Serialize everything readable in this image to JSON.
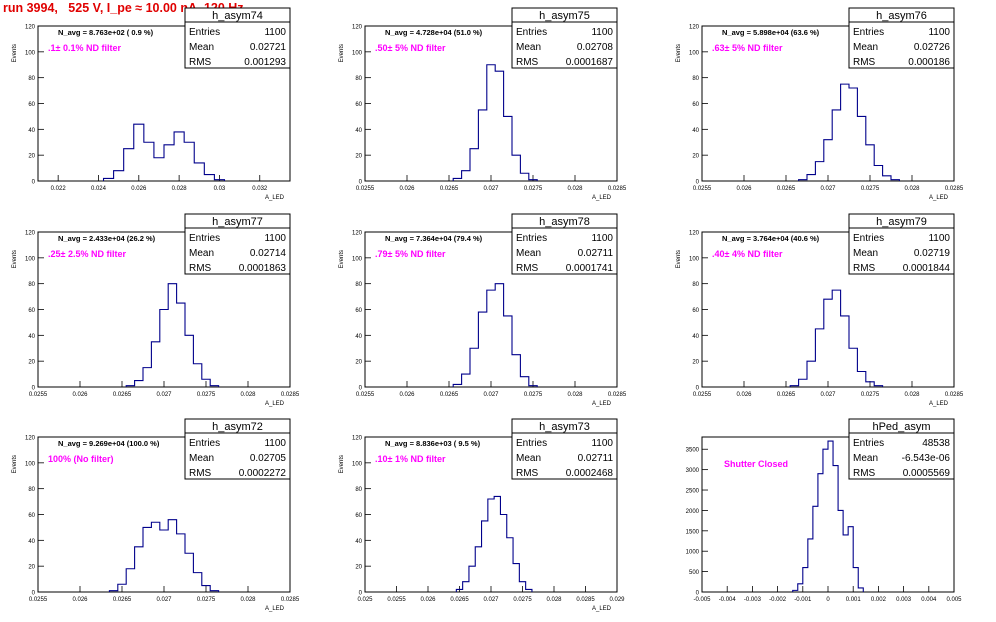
{
  "run_title": "run 3994,   525 V, I_pe ≈ 10.00 nA, 120 Hz",
  "colors": {
    "title": "#e00000",
    "histogram": "#00008b",
    "annotation": "#ff00ff",
    "axes": "#000000"
  },
  "chart_data": [
    {
      "type": "histogram",
      "name": "h_asym74",
      "stats": {
        "entries_label": "Entries",
        "entries": "1100",
        "mean_label": "Mean",
        "mean": "0.02721",
        "rms_label": "RMS",
        "rms": "0.001293"
      },
      "navg": "N_avg = 8.763e+02 ( 0.9 %)",
      "filter": ".1± 0.1% ND filter",
      "ylabel": "Events",
      "xlabel": "A_LED",
      "xlim": [
        0.021,
        0.0335
      ],
      "ylim": [
        0,
        120
      ],
      "xticks": [
        "0.022",
        "0.024",
        "0.026",
        "0.028",
        "0.03",
        "0.032"
      ],
      "yticks": [
        "0",
        "20",
        "40",
        "60",
        "80",
        "100",
        "120"
      ],
      "x": [
        0.0245,
        0.025,
        0.0255,
        0.026,
        0.0265,
        0.027,
        0.0275,
        0.028,
        0.0285,
        0.029,
        0.0295,
        0.03
      ],
      "values": [
        2,
        8,
        25,
        44,
        30,
        18,
        28,
        38,
        30,
        14,
        5,
        1
      ]
    },
    {
      "type": "histogram",
      "name": "h_asym75",
      "stats": {
        "entries_label": "Entries",
        "entries": "1100",
        "mean_label": "Mean",
        "mean": "0.02708",
        "rms_label": "RMS",
        "rms": "0.0001687"
      },
      "navg": "N_avg = 4.728e+04 (51.0 %)",
      "filter": ".50± 5% ND filter",
      "ylabel": "Events",
      "xlabel": "A_LED",
      "xlim": [
        0.0255,
        0.0285
      ],
      "ylim": [
        0,
        120
      ],
      "xticks": [
        "0.0255",
        "0.026",
        "0.0265",
        "0.027",
        "0.0275",
        "0.028",
        "0.0285"
      ],
      "yticks": [
        "0",
        "20",
        "40",
        "60",
        "80",
        "100",
        "120"
      ],
      "x": [
        0.0266,
        0.0267,
        0.0268,
        0.0269,
        0.027,
        0.0271,
        0.0272,
        0.0273,
        0.0274,
        0.0275
      ],
      "values": [
        2,
        8,
        25,
        55,
        90,
        85,
        50,
        20,
        6,
        1
      ]
    },
    {
      "type": "histogram",
      "name": "h_asym76",
      "stats": {
        "entries_label": "Entries",
        "entries": "1100",
        "mean_label": "Mean",
        "mean": "0.02726",
        "rms_label": "RMS",
        "rms": "0.000186"
      },
      "navg": "N_avg = 5.898e+04 (63.6 %)",
      "filter": ".63± 5% ND filter",
      "ylabel": "Events",
      "xlabel": "A_LED",
      "xlim": [
        0.0255,
        0.0285
      ],
      "ylim": [
        0,
        120
      ],
      "xticks": [
        "0.0255",
        "0.026",
        "0.0265",
        "0.027",
        "0.0275",
        "0.028",
        "0.0285"
      ],
      "yticks": [
        "0",
        "20",
        "40",
        "60",
        "80",
        "100",
        "120"
      ],
      "x": [
        0.0267,
        0.0268,
        0.0269,
        0.027,
        0.0271,
        0.0272,
        0.0273,
        0.0274,
        0.0275,
        0.0276,
        0.0277,
        0.0278
      ],
      "values": [
        1,
        5,
        15,
        32,
        55,
        75,
        72,
        50,
        28,
        12,
        4,
        1
      ]
    },
    {
      "type": "histogram",
      "name": "h_asym77",
      "stats": {
        "entries_label": "Entries",
        "entries": "1100",
        "mean_label": "Mean",
        "mean": "0.02714",
        "rms_label": "RMS",
        "rms": "0.0001863"
      },
      "navg": "N_avg = 2.433e+04 (26.2 %)",
      "filter": ".25± 2.5% ND filter",
      "ylabel": "Events",
      "xlabel": "A_LED",
      "xlim": [
        0.0255,
        0.0285
      ],
      "ylim": [
        0,
        120
      ],
      "xticks": [
        "0.0255",
        "0.026",
        "0.0265",
        "0.027",
        "0.0275",
        "0.028",
        "0.0285"
      ],
      "yticks": [
        "0",
        "20",
        "40",
        "60",
        "80",
        "100",
        "120"
      ],
      "x": [
        0.0266,
        0.0267,
        0.0268,
        0.0269,
        0.027,
        0.0271,
        0.0272,
        0.0273,
        0.0274,
        0.0275,
        0.0276
      ],
      "values": [
        1,
        5,
        15,
        35,
        60,
        80,
        65,
        40,
        18,
        6,
        1
      ]
    },
    {
      "type": "histogram",
      "name": "h_asym78",
      "stats": {
        "entries_label": "Entries",
        "entries": "1100",
        "mean_label": "Mean",
        "mean": "0.02711",
        "rms_label": "RMS",
        "rms": "0.0001741"
      },
      "navg": "N_avg = 7.364e+04 (79.4 %)",
      "filter": ".79± 5% ND filter",
      "ylabel": "Events",
      "xlabel": "A_LED",
      "xlim": [
        0.0255,
        0.0285
      ],
      "ylim": [
        0,
        120
      ],
      "xticks": [
        "0.0255",
        "0.026",
        "0.0265",
        "0.027",
        "0.0275",
        "0.028",
        "0.0285"
      ],
      "yticks": [
        "0",
        "20",
        "40",
        "60",
        "80",
        "100",
        "120"
      ],
      "x": [
        0.0266,
        0.0267,
        0.0268,
        0.0269,
        0.027,
        0.0271,
        0.0272,
        0.0273,
        0.0274,
        0.0275
      ],
      "values": [
        2,
        10,
        30,
        58,
        75,
        80,
        55,
        25,
        8,
        1
      ]
    },
    {
      "type": "histogram",
      "name": "h_asym79",
      "stats": {
        "entries_label": "Entries",
        "entries": "1100",
        "mean_label": "Mean",
        "mean": "0.02719",
        "rms_label": "RMS",
        "rms": "0.0001844"
      },
      "navg": "N_avg = 3.764e+04 (40.6 %)",
      "filter": ".40± 4% ND filter",
      "ylabel": "Events",
      "xlabel": "A_LED",
      "xlim": [
        0.0255,
        0.0285
      ],
      "ylim": [
        0,
        120
      ],
      "xticks": [
        "0.0255",
        "0.026",
        "0.0265",
        "0.027",
        "0.0275",
        "0.028",
        "0.0285"
      ],
      "yticks": [
        "0",
        "20",
        "40",
        "60",
        "80",
        "100",
        "120"
      ],
      "x": [
        0.0266,
        0.0267,
        0.0268,
        0.0269,
        0.027,
        0.0271,
        0.0272,
        0.0273,
        0.0274,
        0.0275,
        0.0276
      ],
      "values": [
        1,
        6,
        20,
        45,
        68,
        75,
        55,
        30,
        12,
        4,
        1
      ]
    },
    {
      "type": "histogram",
      "name": "h_asym72",
      "stats": {
        "entries_label": "Entries",
        "entries": "1100",
        "mean_label": "Mean",
        "mean": "0.02705",
        "rms_label": "RMS",
        "rms": "0.0002272"
      },
      "navg": "N_avg = 9.269e+04 (100.0 %)",
      "filter": "100% (No filter)",
      "ylabel": "Events",
      "xlabel": "A_LED",
      "xlim": [
        0.0255,
        0.0285
      ],
      "ylim": [
        0,
        120
      ],
      "xticks": [
        "0.0255",
        "0.026",
        "0.0265",
        "0.027",
        "0.0275",
        "0.028",
        "0.0285"
      ],
      "yticks": [
        "0",
        "20",
        "40",
        "60",
        "80",
        "100",
        "120"
      ],
      "x": [
        0.0264,
        0.0265,
        0.0266,
        0.0267,
        0.0268,
        0.0269,
        0.027,
        0.0271,
        0.0272,
        0.0273,
        0.0274,
        0.0275,
        0.0276
      ],
      "values": [
        1,
        6,
        18,
        35,
        50,
        54,
        48,
        56,
        45,
        30,
        15,
        5,
        1
      ]
    },
    {
      "type": "histogram",
      "name": "h_asym73",
      "stats": {
        "entries_label": "Entries",
        "entries": "1100",
        "mean_label": "Mean",
        "mean": "0.02711",
        "rms_label": "RMS",
        "rms": "0.0002468"
      },
      "navg": "N_avg = 8.836e+03 ( 9.5 %)",
      "filter": ".10± 1% ND filter",
      "ylabel": "Events",
      "xlabel": "A_LED",
      "xlim": [
        0.025,
        0.029
      ],
      "ylim": [
        0,
        120
      ],
      "xticks": [
        "0.025",
        "0.0255",
        "0.026",
        "0.0265",
        "0.027",
        "0.0275",
        "0.028",
        "0.0285",
        "0.029"
      ],
      "yticks": [
        "0",
        "20",
        "40",
        "60",
        "80",
        "100",
        "120"
      ],
      "x": [
        0.0265,
        0.0266,
        0.0267,
        0.0268,
        0.0269,
        0.027,
        0.0271,
        0.0272,
        0.0273,
        0.0274,
        0.0275,
        0.0276
      ],
      "values": [
        2,
        8,
        20,
        35,
        55,
        72,
        74,
        60,
        42,
        22,
        8,
        2
      ]
    },
    {
      "type": "histogram",
      "name": "hPed_asym",
      "stats": {
        "entries_label": "Entries",
        "entries": "48538",
        "mean_label": "Mean",
        "mean": "-6.543e-06",
        "rms_label": "RMS",
        "rms": "0.0005569"
      },
      "navg": "",
      "filter": "Shutter Closed",
      "ylabel": "",
      "xlabel": "",
      "xlim": [
        -0.005,
        0.005
      ],
      "ylim": [
        0,
        3800
      ],
      "xticks": [
        "-0.005",
        "-0.004",
        "-0.003",
        "-0.002",
        "-0.001",
        "0",
        "0.001",
        "0.002",
        "0.003",
        "0.004",
        "0.005"
      ],
      "yticks": [
        "0",
        "500",
        "1000",
        "1500",
        "2000",
        "2500",
        "3000",
        "3500"
      ],
      "x": [
        -0.0013,
        -0.0011,
        -0.0009,
        -0.0007,
        -0.0005,
        -0.0003,
        -0.0001,
        0.0001,
        0.0003,
        0.0005,
        0.0007,
        0.0009,
        0.0011,
        0.0013
      ],
      "values": [
        40,
        200,
        600,
        1300,
        2100,
        2900,
        3500,
        3700,
        3100,
        2000,
        1400,
        1600,
        600,
        100
      ]
    }
  ]
}
